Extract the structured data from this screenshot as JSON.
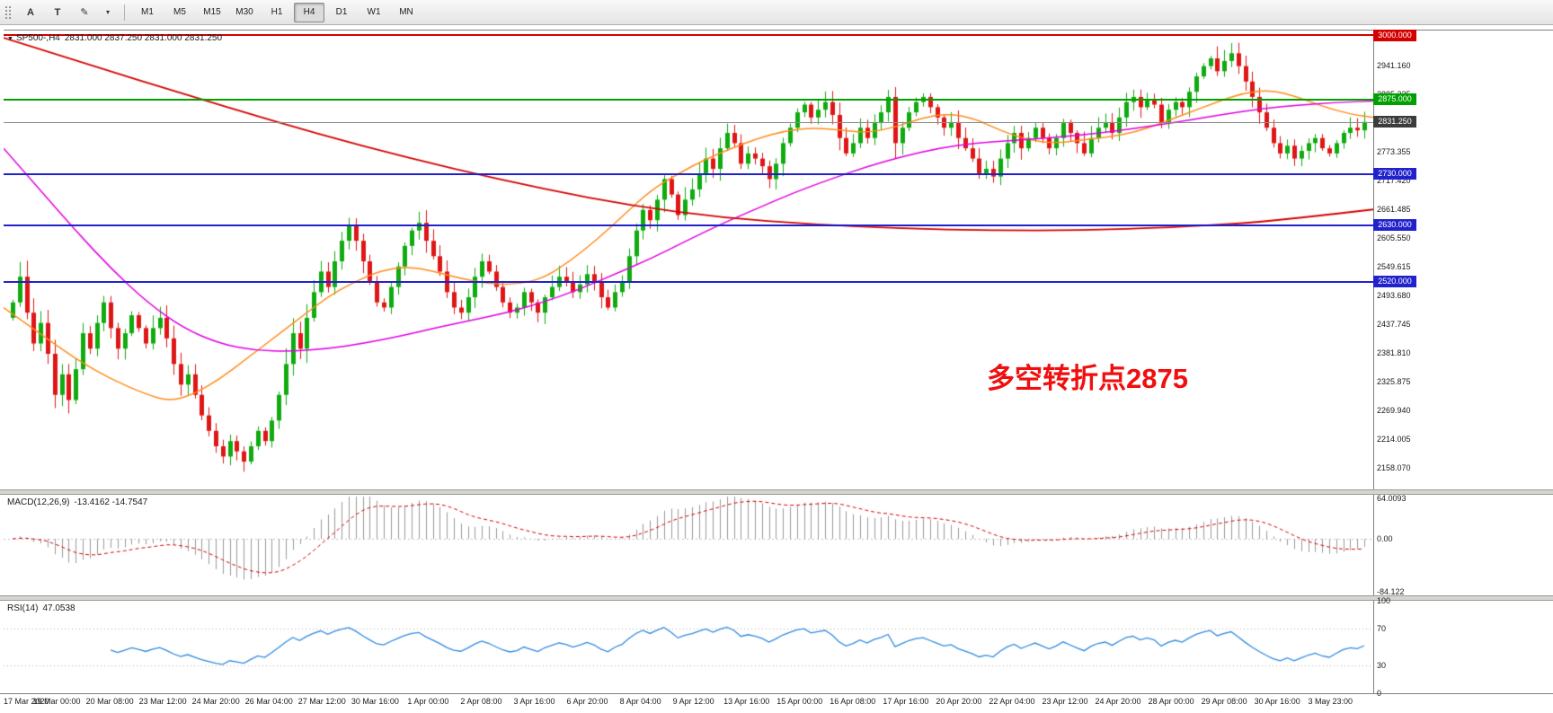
{
  "toolbar": {
    "tools": [
      {
        "name": "text-label-tool",
        "glyph": "A"
      },
      {
        "name": "text-tool",
        "glyph": "T"
      },
      {
        "name": "draw-tool",
        "glyph": "✎"
      },
      {
        "name": "draw-tool-caret",
        "glyph": "▾"
      }
    ],
    "timeframes": [
      "M1",
      "M5",
      "M15",
      "M30",
      "H1",
      "H4",
      "D1",
      "W1",
      "MN"
    ],
    "active_timeframe": "H4"
  },
  "chart": {
    "collapse_icon": "▼",
    "symbol_period": "SP500-,H4",
    "ohlc": "2831.000 2837.250 2831.000 2831.250"
  },
  "chart_data": {
    "type": "candlestick",
    "symbol": "SP500-",
    "timeframe": "H4",
    "ylim": [
      2116,
      3011
    ],
    "price_ticks": [
      2941.16,
      2885.225,
      2773.355,
      2717.42,
      2661.485,
      2605.55,
      2549.615,
      2493.68,
      2437.745,
      2381.81,
      2325.875,
      2269.94,
      2214.005,
      2158.07
    ],
    "closes": [
      2480,
      2530,
      2460,
      2400,
      2440,
      2380,
      2300,
      2340,
      2290,
      2350,
      2420,
      2390,
      2440,
      2480,
      2430,
      2390,
      2420,
      2455,
      2430,
      2400,
      2430,
      2450,
      2410,
      2360,
      2320,
      2340,
      2300,
      2260,
      2230,
      2200,
      2180,
      2210,
      2190,
      2170,
      2200,
      2230,
      2210,
      2250,
      2300,
      2360,
      2420,
      2390,
      2450,
      2500,
      2540,
      2510,
      2560,
      2600,
      2630,
      2600,
      2560,
      2520,
      2480,
      2470,
      2510,
      2550,
      2590,
      2620,
      2635,
      2600,
      2570,
      2540,
      2500,
      2470,
      2460,
      2490,
      2530,
      2560,
      2540,
      2510,
      2480,
      2460,
      2470,
      2500,
      2480,
      2460,
      2490,
      2510,
      2530,
      2520,
      2500,
      2515,
      2535,
      2520,
      2490,
      2470,
      2500,
      2520,
      2570,
      2620,
      2660,
      2640,
      2680,
      2720,
      2690,
      2650,
      2680,
      2700,
      2730,
      2760,
      2740,
      2780,
      2810,
      2790,
      2750,
      2770,
      2760,
      2745,
      2720,
      2750,
      2790,
      2820,
      2850,
      2865,
      2840,
      2855,
      2870,
      2845,
      2800,
      2770,
      2790,
      2820,
      2800,
      2830,
      2850,
      2880,
      2790,
      2820,
      2850,
      2870,
      2880,
      2860,
      2840,
      2820,
      2830,
      2800,
      2780,
      2760,
      2730,
      2740,
      2725,
      2760,
      2790,
      2810,
      2780,
      2800,
      2820,
      2800,
      2780,
      2800,
      2830,
      2810,
      2790,
      2770,
      2800,
      2820,
      2830,
      2810,
      2840,
      2870,
      2880,
      2860,
      2875,
      2865,
      2830,
      2855,
      2870,
      2860,
      2890,
      2920,
      2940,
      2955,
      2930,
      2950,
      2965,
      2940,
      2910,
      2880,
      2850,
      2820,
      2790,
      2770,
      2785,
      2760,
      2775,
      2790,
      2800,
      2780,
      2770,
      2790,
      2810,
      2820,
      2815,
      2831.25
    ],
    "candle_colors": {
      "up": "#0fab0f",
      "down": "#df1616"
    },
    "hlines": [
      {
        "value": 3000.0,
        "label": "3000.000",
        "color": "#d40000"
      },
      {
        "value": 2875.0,
        "label": "2875.000",
        "color": "#00a000"
      },
      {
        "value": 2730.0,
        "label": "2730.000",
        "color": "#2222cc"
      },
      {
        "value": 2630.0,
        "label": "2630.000",
        "color": "#2222cc"
      },
      {
        "value": 2520.0,
        "label": "2520.000",
        "color": "#2222cc"
      }
    ],
    "bid_line": {
      "value": 2831.25,
      "label": "2831.250",
      "color": "#8c8c8c",
      "box_color": "#3c3c3c"
    },
    "annotation": {
      "text": "多空转折点2875",
      "color": "#f10e0e"
    },
    "ma_lines": [
      {
        "name": "ma-fast-orange",
        "color": "#ff8c1a",
        "width": 1.5,
        "points": [
          [
            0,
            2470
          ],
          [
            40,
            2420
          ],
          [
            80,
            2370
          ],
          [
            120,
            2330
          ],
          [
            160,
            2300
          ],
          [
            185,
            2288
          ],
          [
            210,
            2300
          ],
          [
            240,
            2330
          ],
          [
            270,
            2370
          ],
          [
            300,
            2410
          ],
          [
            330,
            2450
          ],
          [
            360,
            2490
          ],
          [
            390,
            2520
          ],
          [
            420,
            2542
          ],
          [
            450,
            2550
          ],
          [
            480,
            2540
          ],
          [
            510,
            2526
          ],
          [
            540,
            2516
          ],
          [
            570,
            2515
          ],
          [
            600,
            2526
          ],
          [
            630,
            2560
          ],
          [
            660,
            2602
          ],
          [
            690,
            2650
          ],
          [
            720,
            2698
          ],
          [
            750,
            2730
          ],
          [
            780,
            2758
          ],
          [
            810,
            2780
          ],
          [
            840,
            2800
          ],
          [
            870,
            2814
          ],
          [
            900,
            2820
          ],
          [
            930,
            2816
          ],
          [
            960,
            2810
          ],
          [
            990,
            2820
          ],
          [
            1020,
            2838
          ],
          [
            1050,
            2848
          ],
          [
            1080,
            2838
          ],
          [
            1110,
            2814
          ],
          [
            1140,
            2796
          ],
          [
            1170,
            2790
          ],
          [
            1200,
            2796
          ],
          [
            1230,
            2802
          ],
          [
            1260,
            2812
          ],
          [
            1290,
            2830
          ],
          [
            1320,
            2850
          ],
          [
            1350,
            2870
          ],
          [
            1380,
            2888
          ],
          [
            1410,
            2894
          ],
          [
            1440,
            2880
          ],
          [
            1470,
            2860
          ],
          [
            1500,
            2846
          ],
          [
            1524,
            2840
          ]
        ]
      },
      {
        "name": "ma-mid-magenta",
        "color": "#e000e0",
        "width": 1.5,
        "points": [
          [
            0,
            2780
          ],
          [
            40,
            2700
          ],
          [
            80,
            2620
          ],
          [
            120,
            2545
          ],
          [
            160,
            2480
          ],
          [
            200,
            2430
          ],
          [
            240,
            2400
          ],
          [
            280,
            2386
          ],
          [
            320,
            2385
          ],
          [
            360,
            2390
          ],
          [
            400,
            2400
          ],
          [
            440,
            2414
          ],
          [
            480,
            2430
          ],
          [
            520,
            2445
          ],
          [
            560,
            2460
          ],
          [
            600,
            2480
          ],
          [
            640,
            2505
          ],
          [
            680,
            2535
          ],
          [
            720,
            2565
          ],
          [
            760,
            2600
          ],
          [
            800,
            2634
          ],
          [
            840,
            2664
          ],
          [
            880,
            2694
          ],
          [
            920,
            2720
          ],
          [
            960,
            2744
          ],
          [
            1000,
            2764
          ],
          [
            1040,
            2780
          ],
          [
            1080,
            2790
          ],
          [
            1120,
            2795
          ],
          [
            1160,
            2800
          ],
          [
            1200,
            2806
          ],
          [
            1240,
            2814
          ],
          [
            1280,
            2824
          ],
          [
            1320,
            2835
          ],
          [
            1360,
            2847
          ],
          [
            1400,
            2857
          ],
          [
            1440,
            2864
          ],
          [
            1480,
            2869
          ],
          [
            1524,
            2872
          ]
        ]
      },
      {
        "name": "ma-slow-red",
        "color": "#d40000",
        "width": 1.8,
        "points": [
          [
            0,
            2995
          ],
          [
            100,
            2940
          ],
          [
            200,
            2886
          ],
          [
            300,
            2833
          ],
          [
            400,
            2784
          ],
          [
            500,
            2740
          ],
          [
            600,
            2701
          ],
          [
            700,
            2668
          ],
          [
            800,
            2645
          ],
          [
            900,
            2632
          ],
          [
            1000,
            2624
          ],
          [
            1100,
            2620
          ],
          [
            1200,
            2620
          ],
          [
            1300,
            2626
          ],
          [
            1380,
            2634
          ],
          [
            1450,
            2646
          ],
          [
            1524,
            2661
          ]
        ]
      }
    ],
    "macd": {
      "label": "MACD(12,26,9)",
      "values": "-13.4162 -14.7547",
      "params": [
        12,
        26,
        9
      ],
      "range": [
        70,
        -90
      ],
      "ticks": [
        {
          "v": 64.0093,
          "label": "64.0093"
        },
        {
          "v": 0,
          "label": "0.00"
        },
        {
          "v": -84.122,
          "label": "-84.122"
        }
      ],
      "hist_color": "#9a9a9a",
      "signal_color": "#d40000"
    },
    "rsi": {
      "label": "RSI(14)",
      "value": "47.0538",
      "period": 14,
      "levels": [
        70,
        30
      ],
      "ticks": [
        {
          "v": 100,
          "label": "100"
        },
        {
          "v": 70,
          "label": "70"
        },
        {
          "v": 30,
          "label": "30"
        },
        {
          "v": 0,
          "label": "0"
        }
      ],
      "color": "#2f8be0"
    },
    "x_labels": [
      "17 Mar 2020",
      "19 Mar 00:00",
      "20 Mar 08:00",
      "23 Mar 12:00",
      "24 Mar 20:00",
      "26 Mar 04:00",
      "27 Mar 12:00",
      "30 Mar 16:00",
      "1 Apr 00:00",
      "2 Apr 08:00",
      "3 Apr 16:00",
      "6 Apr 20:00",
      "8 Apr 04:00",
      "9 Apr 12:00",
      "13 Apr 16:00",
      "15 Apr 00:00",
      "16 Apr 08:00",
      "17 Apr 16:00",
      "20 Apr 20:00",
      "22 Apr 04:00",
      "23 Apr 12:00",
      "24 Apr 20:00",
      "28 Apr 00:00",
      "29 Apr 08:00",
      "30 Apr 16:00",
      "3 May 23:00"
    ]
  }
}
